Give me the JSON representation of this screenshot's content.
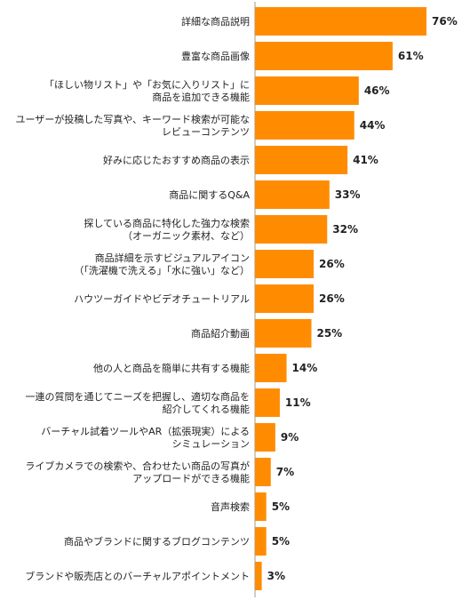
{
  "chart_data": {
    "type": "bar",
    "orientation": "horizontal",
    "categories": [
      [
        "詳細な商品説明"
      ],
      [
        "豊富な商品画像"
      ],
      [
        "「ほしい物リスト」や「お気に入りリスト」に",
        "商品を追加できる機能"
      ],
      [
        "ユーザーが投稿した写真や、キーワード検索が可能な",
        "レビューコンテンツ"
      ],
      [
        "好みに応じたおすすめ商品の表示"
      ],
      [
        "商品に関するQ&A"
      ],
      [
        "探している商品に特化した強力な検索",
        "（オーガニック素材、など）"
      ],
      [
        "商品詳細を示すビジュアルアイコン",
        "（「洗濯機で洗える」「水に強い」など）"
      ],
      [
        "ハウツーガイドやビデオチュートリアル"
      ],
      [
        "商品紹介動画"
      ],
      [
        "他の人と商品を簡単に共有する機能"
      ],
      [
        "一連の質問を通じてニーズを把握し、適切な商品を",
        "紹介してくれる機能"
      ],
      [
        "バーチャル試着ツールやAR（拡張現実）による",
        "シミュレーション"
      ],
      [
        "ライブカメラでの検索や、合わせたい商品の写真が",
        "アップロードができる機能"
      ],
      [
        "音声検索"
      ],
      [
        "商品やブランドに関するブログコンテンツ"
      ],
      [
        "ブランドや販売店とのバーチャルアポイントメント"
      ]
    ],
    "values": [
      76,
      61,
      46,
      44,
      41,
      33,
      32,
      26,
      26,
      25,
      14,
      11,
      9,
      7,
      5,
      5,
      3
    ],
    "value_labels": [
      "76%",
      "61%",
      "46%",
      "44%",
      "41%",
      "33%",
      "32%",
      "26%",
      "26%",
      "25%",
      "14%",
      "11%",
      "9%",
      "7%",
      "5%",
      "5%",
      "3%"
    ],
    "xlim": [
      0,
      76
    ],
    "bar_color": "#ff8c00",
    "axis_color": "#999999",
    "grid": false,
    "legend": "none"
  }
}
